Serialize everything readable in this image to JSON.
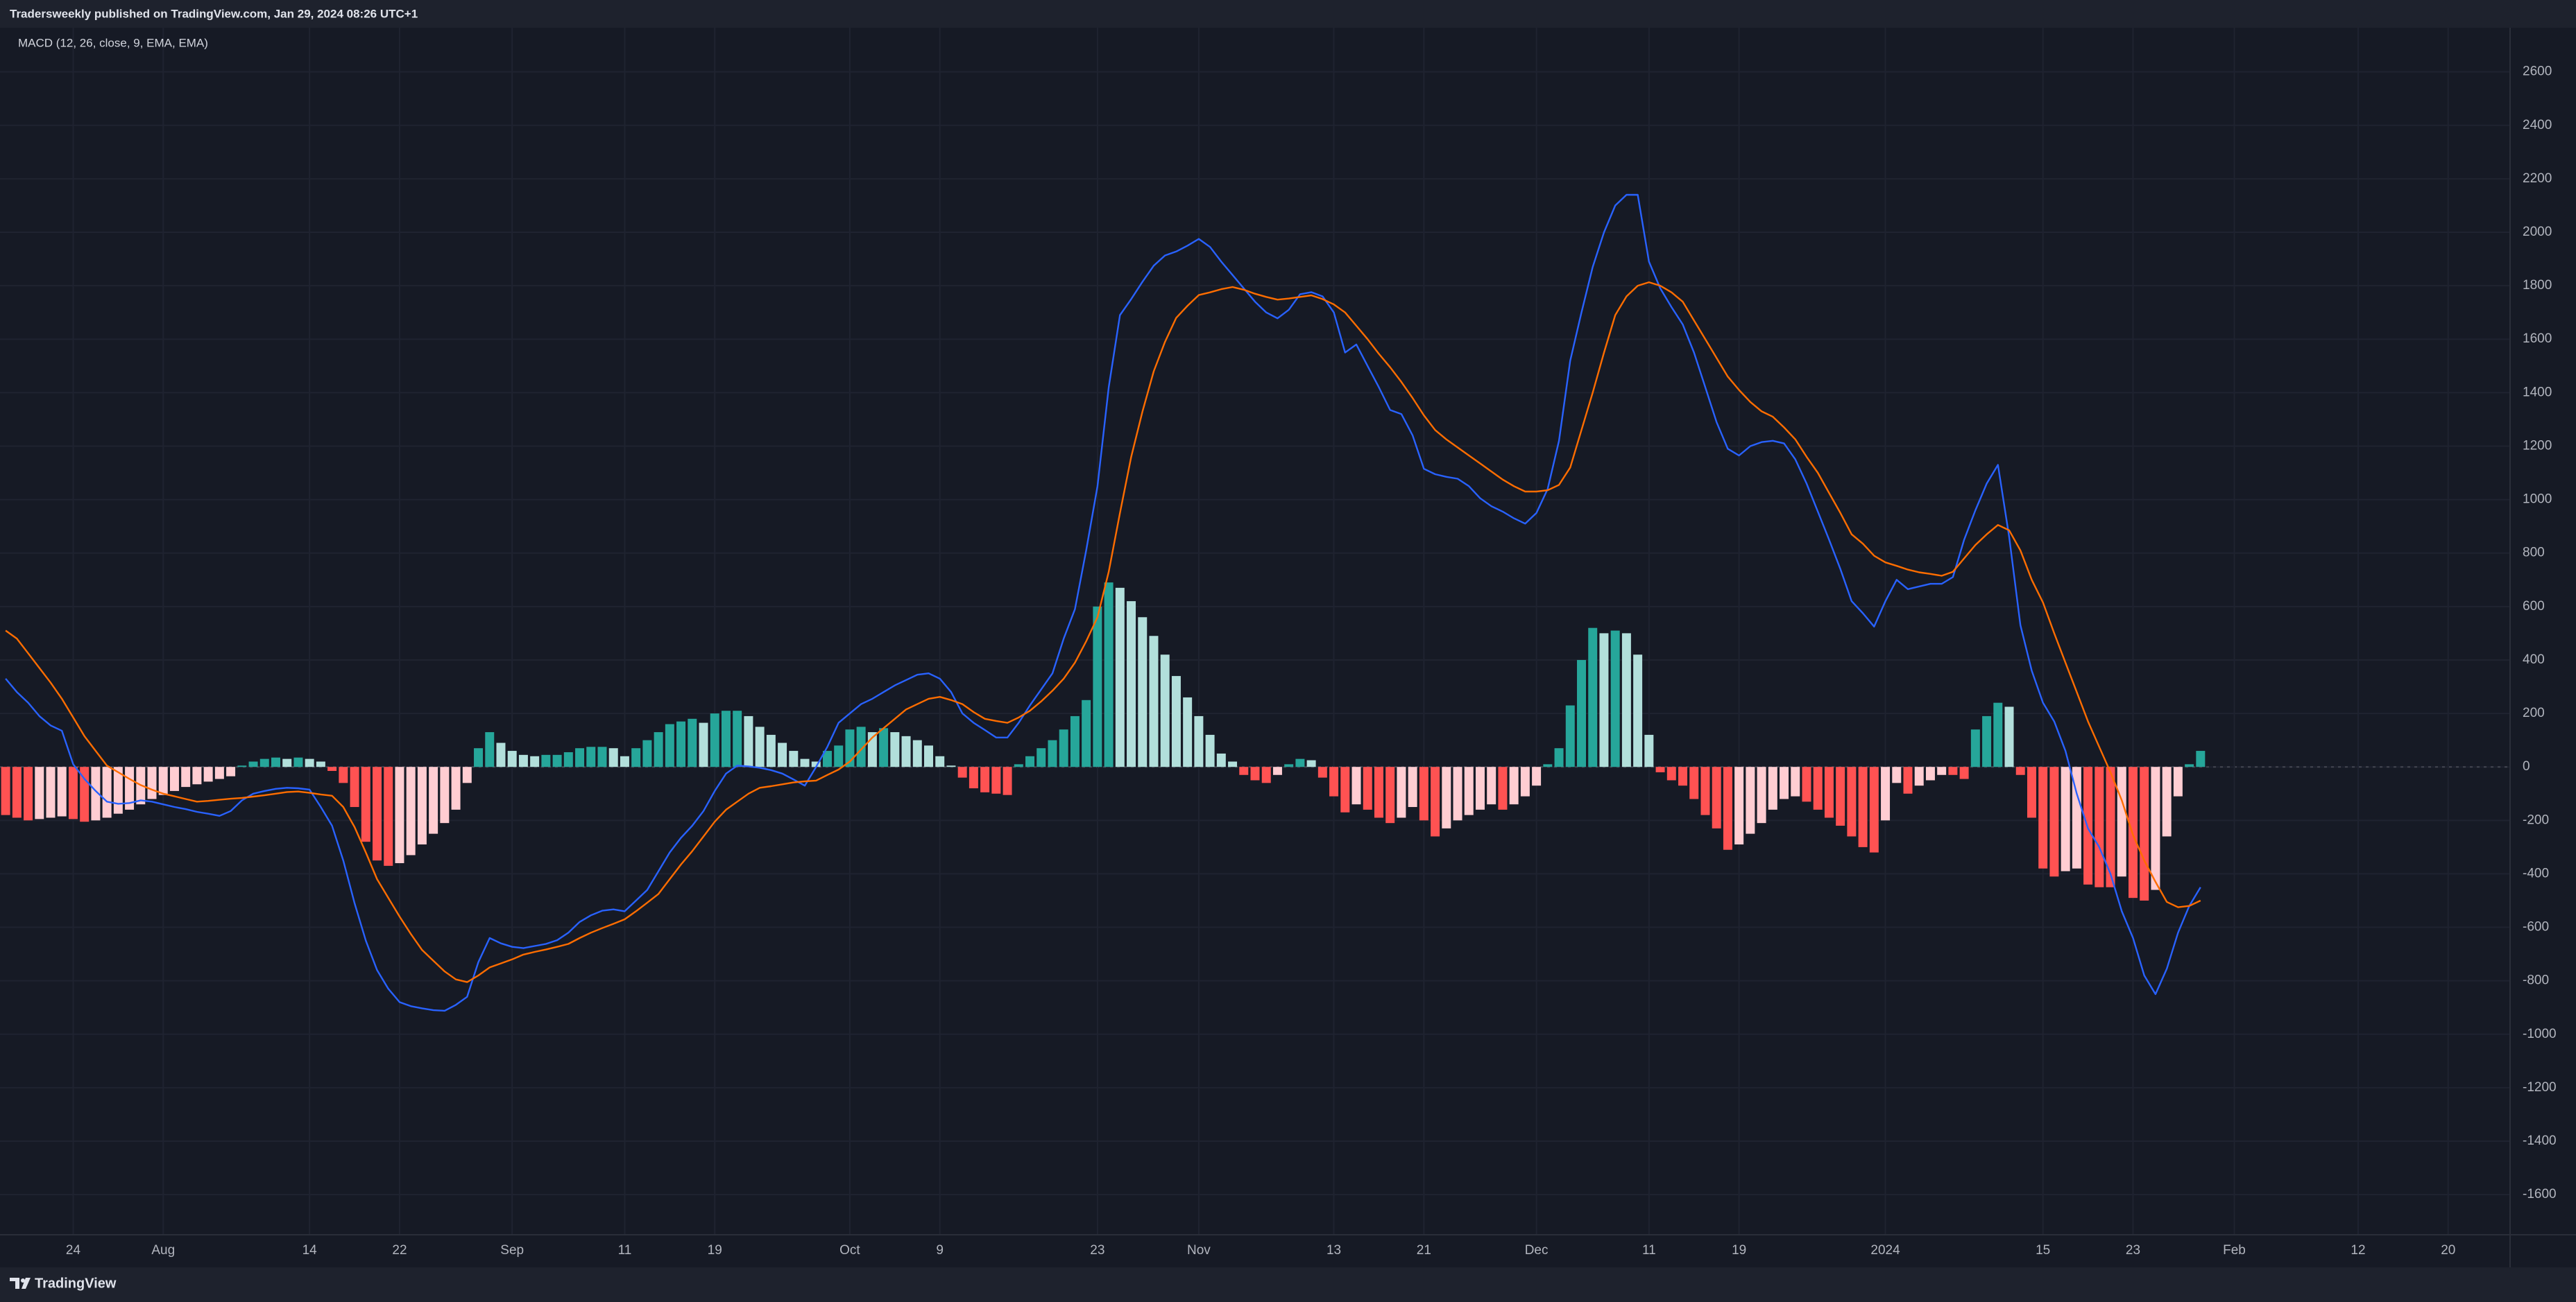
{
  "header": "Tradersweekly published on TradingView.com, Jan 29, 2024 08:26 UTC+1",
  "brand": "TradingView",
  "chart_data": {
    "type": "macd",
    "title": "MACD (12, 26, close, 9, EMA, EMA)",
    "categories": [
      null,
      null,
      null,
      null,
      null,
      null,
      "24",
      null,
      null,
      null,
      null,
      null,
      null,
      null,
      "Aug",
      null,
      null,
      null,
      null,
      null,
      null,
      null,
      null,
      null,
      null,
      null,
      null,
      "14",
      null,
      null,
      null,
      null,
      null,
      null,
      null,
      "22",
      null,
      null,
      null,
      null,
      null,
      null,
      null,
      null,
      null,
      "Sep",
      null,
      null,
      null,
      null,
      null,
      null,
      null,
      null,
      null,
      "11",
      null,
      null,
      null,
      null,
      null,
      null,
      null,
      "19",
      null,
      null,
      null,
      null,
      null,
      null,
      null,
      null,
      null,
      null,
      null,
      "Oct",
      null,
      null,
      null,
      null,
      null,
      null,
      null,
      "9",
      null,
      null,
      null,
      null,
      null,
      null,
      null,
      null,
      null,
      null,
      null,
      null,
      null,
      "23",
      null,
      null,
      null,
      null,
      null,
      null,
      null,
      null,
      "Nov",
      null,
      null,
      null,
      null,
      null,
      null,
      null,
      null,
      null,
      null,
      null,
      "13",
      null,
      null,
      null,
      null,
      null,
      null,
      null,
      "21",
      null,
      null,
      null,
      null,
      null,
      null,
      null,
      null,
      null,
      "Dec",
      null,
      null,
      null,
      null,
      null,
      null,
      null,
      null,
      null,
      "11",
      null,
      null,
      null,
      null,
      null,
      null,
      null,
      "19",
      null,
      null,
      null,
      null,
      null,
      null,
      null,
      null,
      null,
      null,
      null,
      null,
      "2024",
      null,
      null,
      null,
      null,
      null,
      null,
      null,
      null,
      null,
      null,
      null,
      null,
      null,
      "15",
      null,
      null,
      null,
      null,
      null,
      null,
      null,
      "23",
      null,
      null,
      null,
      null,
      null,
      null,
      null,
      null,
      "Feb",
      null,
      null,
      null,
      null,
      null,
      null,
      null,
      null,
      null,
      null,
      "12",
      null,
      null,
      null,
      null,
      null,
      null,
      null,
      "20",
      null,
      null,
      null,
      null,
      null
    ],
    "series": [
      {
        "type": "bar",
        "colors": [
          "#26a69a",
          "#b2dfdb",
          "#ffcdd2",
          "#ff5252"
        ],
        "values": [
          -180,
          -190,
          -200,
          -195,
          -190,
          -185,
          -195,
          -205,
          -200,
          -190,
          -175,
          -160,
          -140,
          -120,
          -105,
          -90,
          -75,
          -65,
          -55,
          -45,
          -35,
          5,
          20,
          30,
          35,
          30,
          35,
          30,
          20,
          -15,
          -60,
          -150,
          -280,
          -350,
          -370,
          -360,
          -330,
          -290,
          -250,
          -210,
          -160,
          -60,
          70,
          130,
          90,
          60,
          45,
          40,
          45,
          45,
          55,
          70,
          75,
          75,
          70,
          40,
          70,
          100,
          130,
          160,
          170,
          180,
          165,
          200,
          210,
          210,
          190,
          150,
          120,
          90,
          60,
          30,
          20,
          60,
          80,
          140,
          150,
          130,
          145,
          130,
          115,
          100,
          80,
          40,
          5,
          -40,
          -80,
          -95,
          -100,
          -105,
          10,
          40,
          70,
          100,
          140,
          190,
          250,
          600,
          690,
          670,
          620,
          560,
          490,
          420,
          340,
          260,
          190,
          120,
          50,
          20,
          -30,
          -50,
          -60,
          -30,
          10,
          30,
          25,
          -40,
          -110,
          -170,
          -140,
          -160,
          -190,
          -210,
          -190,
          -150,
          -200,
          -260,
          -230,
          -200,
          -180,
          -160,
          -140,
          -160,
          -140,
          -110,
          -70,
          10,
          70,
          230,
          400,
          520,
          500,
          510,
          500,
          420,
          120,
          -20,
          -50,
          -70,
          -120,
          -180,
          -230,
          -310,
          -290,
          -250,
          -210,
          -160,
          -120,
          -110,
          -130,
          -160,
          -190,
          -220,
          -260,
          -300,
          -320,
          -200,
          -60,
          -100,
          -70,
          -50,
          -30,
          -30,
          -45,
          140,
          190,
          240,
          225,
          -30,
          -190,
          -380,
          -410,
          -390,
          -380,
          -440,
          -450,
          -450,
          -410,
          -490,
          -500,
          -460,
          -260,
          -110,
          10,
          60,
          null,
          null,
          null,
          null,
          null,
          null,
          null,
          null,
          null,
          null,
          null,
          null,
          null,
          null,
          null,
          null,
          null,
          null,
          null,
          null,
          null,
          null,
          null,
          null,
          null,
          null,
          null
        ]
      },
      {
        "type": "line",
        "color": "#2962ff",
        "values": [
          330,
          280,
          240,
          190,
          155,
          135,
          10,
          -45,
          -90,
          -130,
          -138,
          -135,
          -125,
          -130,
          -140,
          -150,
          -158,
          -168,
          -175,
          -183,
          -165,
          -125,
          -100,
          -90,
          -82,
          -78,
          -80,
          -85,
          -150,
          -220,
          -350,
          -510,
          -650,
          -760,
          -830,
          -880,
          -895,
          -903,
          -910,
          -912,
          -890,
          -860,
          -730,
          -640,
          -660,
          -673,
          -678,
          -670,
          -662,
          -648,
          -620,
          -580,
          -555,
          -538,
          -533,
          -540,
          -500,
          -460,
          -390,
          -320,
          -265,
          -220,
          -165,
          -90,
          -25,
          5,
          2,
          -3,
          -12,
          -25,
          -47,
          -70,
          0,
          75,
          165,
          200,
          235,
          255,
          280,
          305,
          325,
          345,
          350,
          330,
          280,
          200,
          165,
          138,
          110,
          110,
          165,
          230,
          290,
          350,
          480,
          590,
          810,
          1050,
          1420,
          1690,
          1750,
          1815,
          1875,
          1913,
          1928,
          1950,
          1975,
          1945,
          1890,
          1840,
          1790,
          1740,
          1700,
          1678,
          1710,
          1768,
          1776,
          1760,
          1700,
          1550,
          1580,
          1500,
          1420,
          1335,
          1320,
          1240,
          1115,
          1095,
          1085,
          1078,
          1050,
          1005,
          975,
          955,
          930,
          910,
          950,
          1040,
          1220,
          1520,
          1700,
          1870,
          2000,
          2100,
          2140,
          2140,
          1890,
          1790,
          1720,
          1655,
          1550,
          1420,
          1290,
          1190,
          1165,
          1200,
          1215,
          1220,
          1210,
          1150,
          1060,
          955,
          850,
          740,
          620,
          575,
          525,
          620,
          700,
          665,
          675,
          685,
          685,
          710,
          850,
          960,
          1060,
          1130,
          860,
          530,
          360,
          240,
          170,
          60,
          -100,
          -230,
          -300,
          -400,
          -540,
          -640,
          -780,
          -850,
          -755,
          -620,
          -520,
          -450,
          null,
          null,
          null,
          null,
          null,
          null,
          null,
          null,
          null,
          null,
          null,
          null,
          null,
          null,
          null,
          null,
          null,
          null,
          null,
          null,
          null,
          null,
          null,
          null,
          null,
          null,
          null
        ]
      },
      {
        "type": "line",
        "color": "#ff6d00",
        "values": [
          510,
          480,
          425,
          370,
          315,
          255,
          185,
          115,
          60,
          5,
          -20,
          -45,
          -68,
          -85,
          -100,
          -110,
          -120,
          -130,
          -127,
          -123,
          -119,
          -116,
          -111,
          -106,
          -100,
          -94,
          -92,
          -97,
          -103,
          -108,
          -150,
          -225,
          -320,
          -420,
          -490,
          -560,
          -625,
          -685,
          -725,
          -765,
          -795,
          -805,
          -780,
          -750,
          -735,
          -720,
          -702,
          -692,
          -683,
          -673,
          -662,
          -640,
          -620,
          -603,
          -587,
          -570,
          -540,
          -508,
          -475,
          -420,
          -365,
          -315,
          -260,
          -205,
          -160,
          -130,
          -100,
          -78,
          -72,
          -65,
          -58,
          -54,
          -51,
          -30,
          -10,
          20,
          65,
          110,
          145,
          180,
          215,
          235,
          255,
          262,
          250,
          235,
          205,
          180,
          172,
          165,
          185,
          210,
          245,
          285,
          330,
          390,
          470,
          560,
          730,
          950,
          1160,
          1330,
          1480,
          1590,
          1680,
          1725,
          1765,
          1775,
          1787,
          1795,
          1785,
          1770,
          1758,
          1748,
          1752,
          1758,
          1764,
          1750,
          1730,
          1700,
          1650,
          1600,
          1545,
          1495,
          1440,
          1380,
          1315,
          1260,
          1225,
          1195,
          1165,
          1135,
          1105,
          1075,
          1050,
          1030,
          1030,
          1035,
          1055,
          1120,
          1260,
          1400,
          1550,
          1690,
          1760,
          1800,
          1813,
          1800,
          1775,
          1740,
          1670,
          1600,
          1530,
          1460,
          1410,
          1365,
          1330,
          1310,
          1270,
          1225,
          1160,
          1100,
          1025,
          950,
          870,
          835,
          790,
          765,
          752,
          738,
          728,
          722,
          715,
          730,
          780,
          830,
          870,
          905,
          885,
          810,
          700,
          615,
          500,
          390,
          280,
          170,
          75,
          -20,
          -125,
          -255,
          -350,
          -430,
          -505,
          -525,
          -520,
          -500,
          null,
          null,
          null,
          null,
          null,
          null,
          null,
          null,
          null,
          null,
          null,
          null,
          null,
          null,
          null,
          null,
          null,
          null,
          null,
          null,
          null,
          null,
          null,
          null,
          null,
          null,
          null
        ]
      }
    ],
    "ylim": [
      -1750,
      2765
    ],
    "yticks": [
      -1600,
      -1400,
      -1200,
      -1000,
      -800,
      -600,
      -400,
      -200,
      0,
      200,
      400,
      600,
      800,
      1000,
      1200,
      1400,
      1600,
      1800,
      2000,
      2200,
      2400,
      2600
    ],
    "grid": true
  }
}
